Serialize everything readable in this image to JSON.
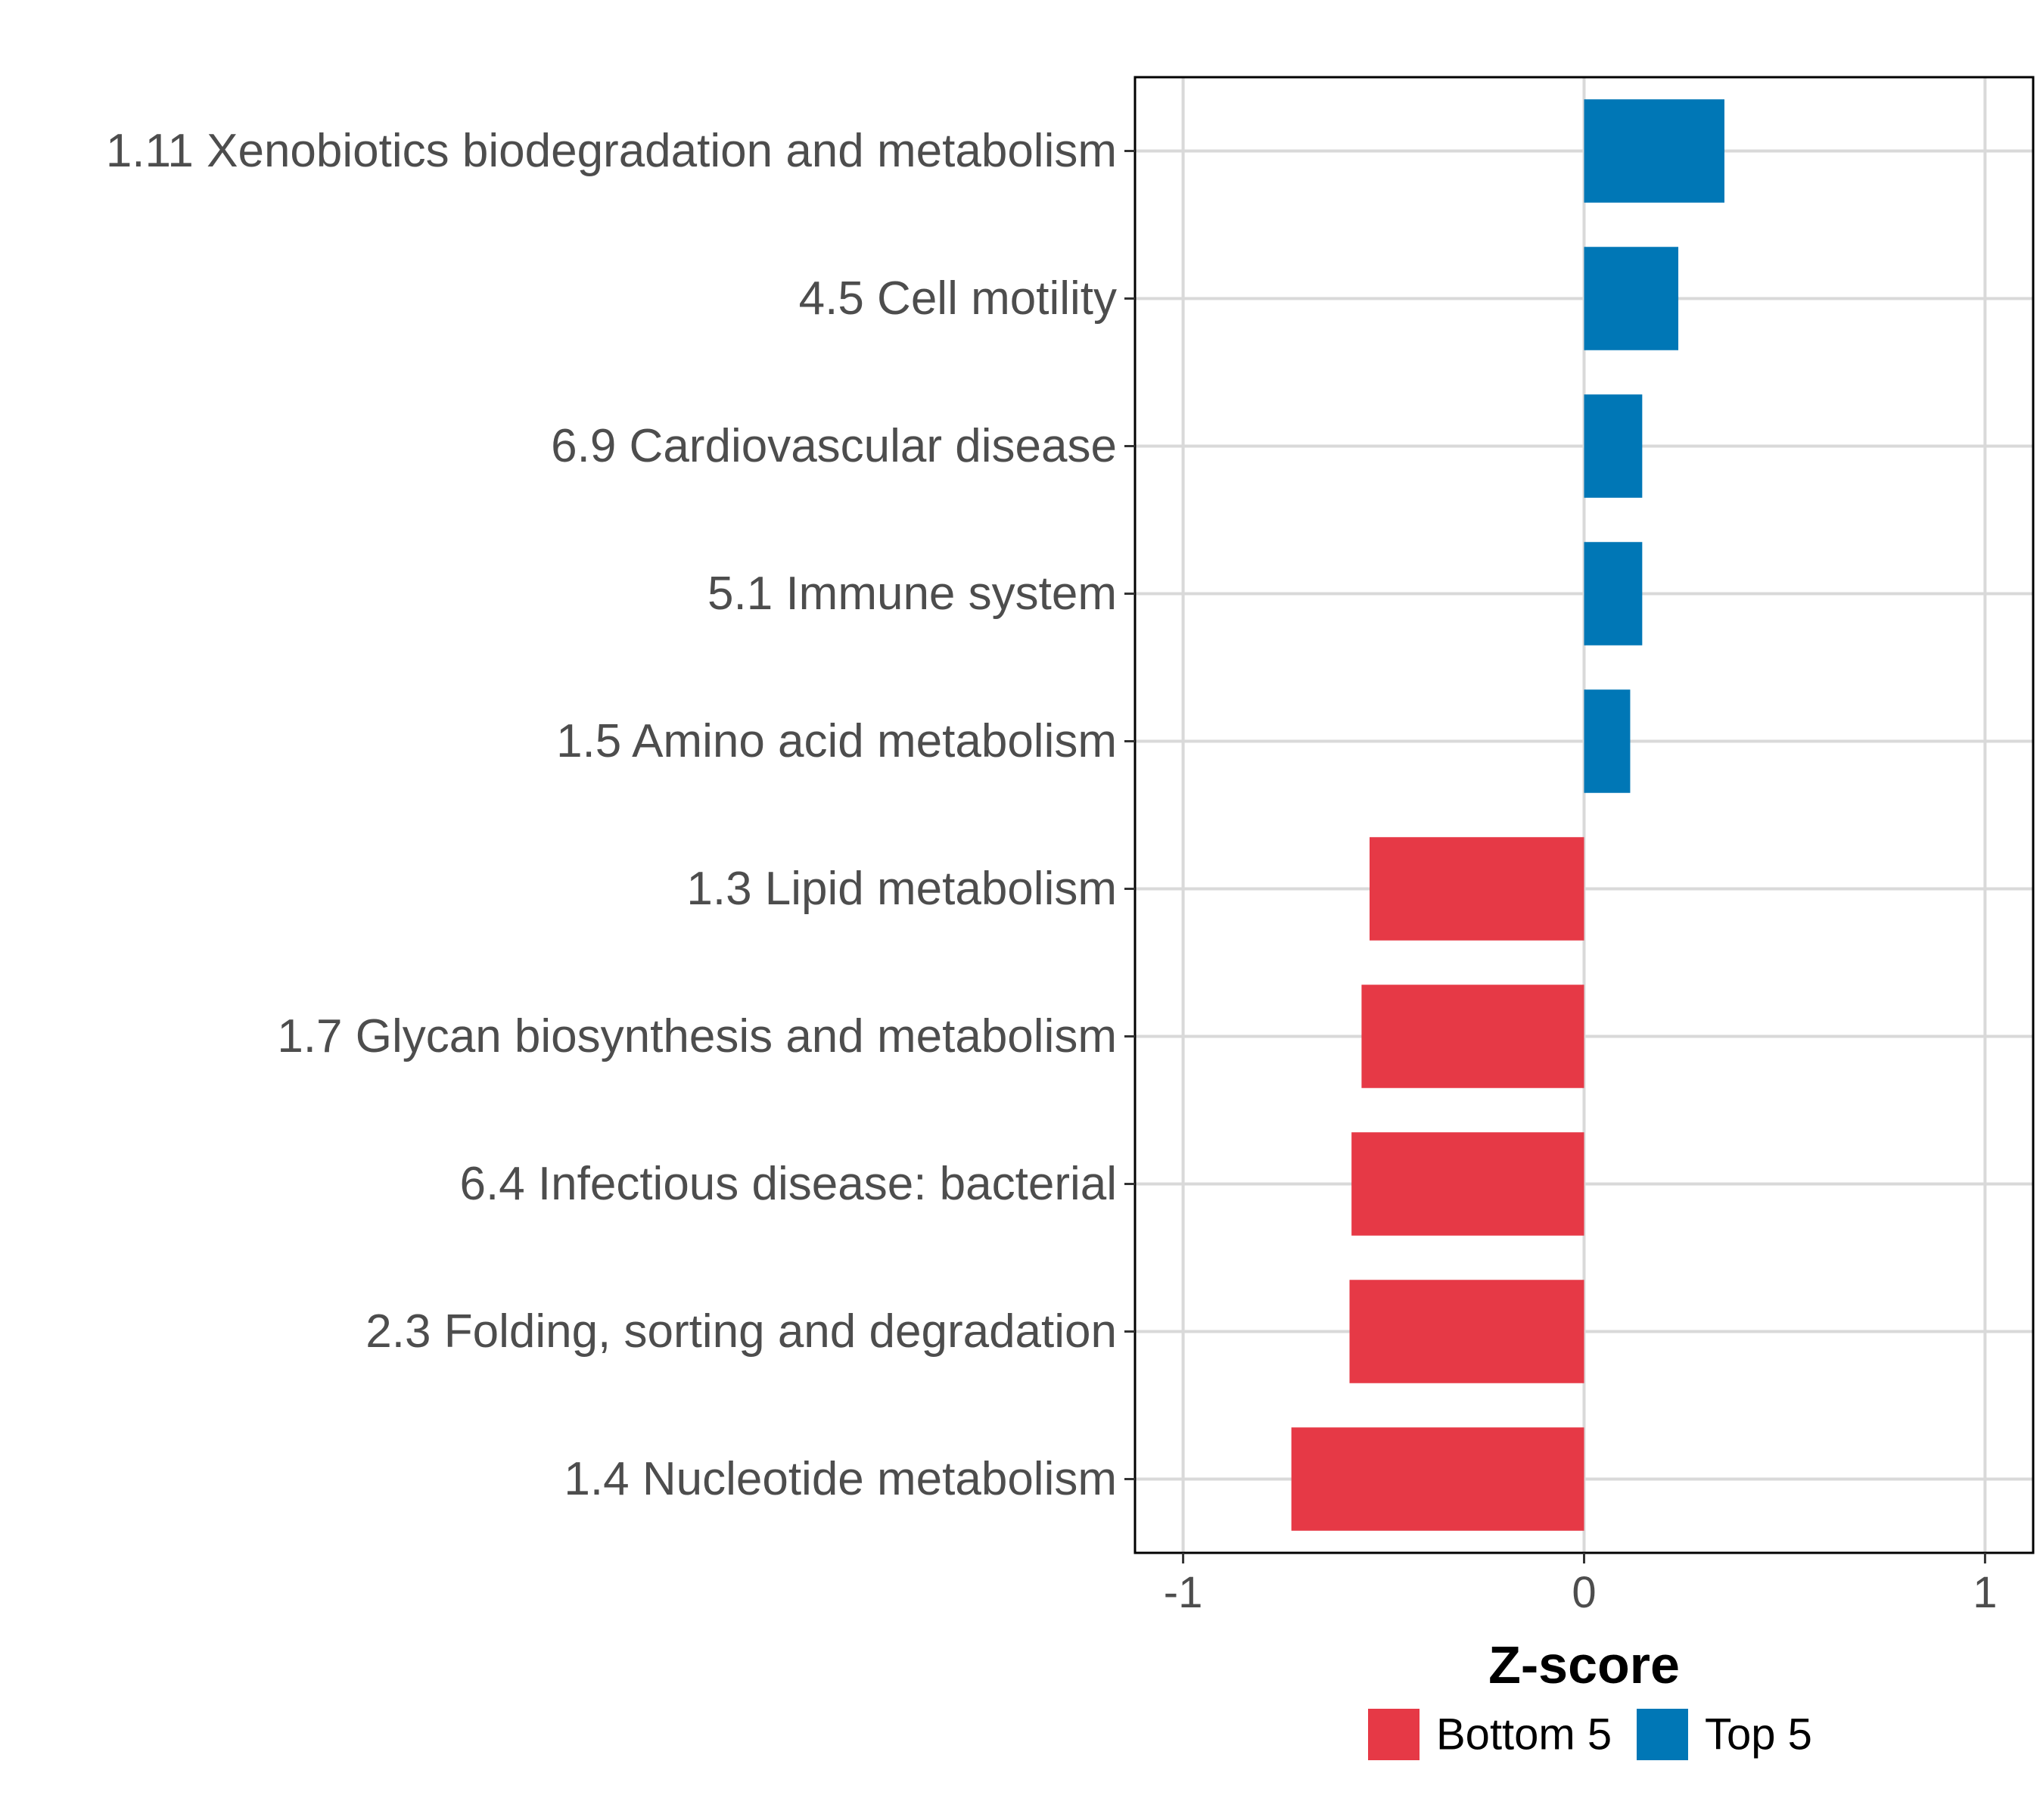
{
  "chart_data": {
    "type": "bar",
    "orientation": "horizontal",
    "xlabel": "Z-score",
    "ylabel": "",
    "xlim": [
      -1.12,
      1.12
    ],
    "xticks": [
      -1,
      0,
      1
    ],
    "xtick_labels": [
      "-1",
      "0",
      "1"
    ],
    "grid": true,
    "legend_position": "bottom",
    "categories": [
      "1.11 Xenobiotics biodegradation and metabolism",
      "4.5 Cell motility",
      "6.9 Cardiovascular disease",
      "5.1 Immune system",
      "1.5 Amino acid metabolism",
      "1.3 Lipid metabolism",
      "1.7 Glycan biosynthesis and metabolism",
      "6.4 Infectious disease: bacterial",
      "2.3 Folding, sorting and degradation",
      "1.4 Nucleotide metabolism"
    ],
    "values": [
      0.35,
      0.235,
      0.145,
      0.145,
      0.115,
      -0.535,
      -0.555,
      -0.58,
      -0.585,
      -0.73
    ],
    "groups": [
      "Top 5",
      "Top 5",
      "Top 5",
      "Top 5",
      "Top 5",
      "Bottom 5",
      "Bottom 5",
      "Bottom 5",
      "Bottom 5",
      "Bottom 5"
    ],
    "legend": [
      {
        "name": "Bottom 5",
        "color": "#E63946"
      },
      {
        "name": "Top 5",
        "color": "#0077B6"
      }
    ]
  }
}
